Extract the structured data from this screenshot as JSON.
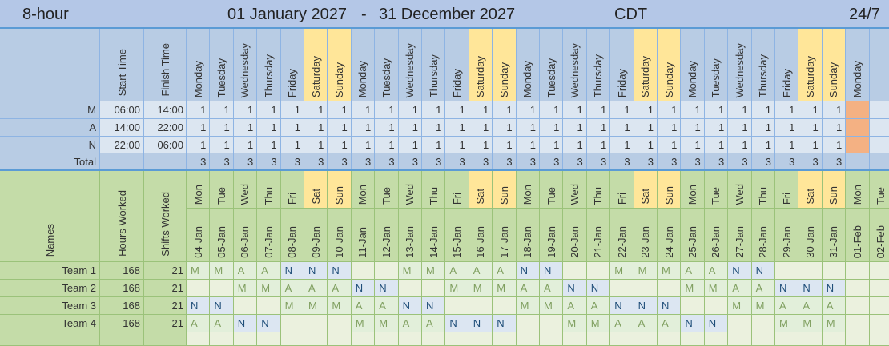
{
  "header": {
    "title": "8-hour",
    "start_date": "01 January 2027",
    "separator": "-",
    "end_date": "31 December 2027",
    "timezone": "CDT",
    "coverage": "24/7"
  },
  "shift_table": {
    "column_headers": [
      "Start Time",
      "Finish Time"
    ],
    "days": [
      {
        "label": "Monday",
        "color": "#b8cce4"
      },
      {
        "label": "Tuesday",
        "color": "#b8cce4"
      },
      {
        "label": "Wednesday",
        "color": "#b8cce4"
      },
      {
        "label": "Thursday",
        "color": "#b8cce4"
      },
      {
        "label": "Friday",
        "color": "#b8cce4"
      },
      {
        "label": "Saturday",
        "color": "#ffe699"
      },
      {
        "label": "Sunday",
        "color": "#ffe699"
      },
      {
        "label": "Monday",
        "color": "#b8cce4"
      },
      {
        "label": "Tuesday",
        "color": "#b8cce4"
      },
      {
        "label": "Wednesday",
        "color": "#b8cce4"
      },
      {
        "label": "Thursday",
        "color": "#b8cce4"
      },
      {
        "label": "Friday",
        "color": "#b8cce4"
      },
      {
        "label": "Saturday",
        "color": "#ffe699"
      },
      {
        "label": "Sunday",
        "color": "#ffe699"
      },
      {
        "label": "Monday",
        "color": "#b8cce4"
      },
      {
        "label": "Tuesday",
        "color": "#b8cce4"
      },
      {
        "label": "Wednesday",
        "color": "#b8cce4"
      },
      {
        "label": "Thursday",
        "color": "#b8cce4"
      },
      {
        "label": "Friday",
        "color": "#b8cce4"
      },
      {
        "label": "Saturday",
        "color": "#ffe699"
      },
      {
        "label": "Sunday",
        "color": "#ffe699"
      },
      {
        "label": "Monday",
        "color": "#b8cce4"
      },
      {
        "label": "Tuesday",
        "color": "#b8cce4"
      },
      {
        "label": "Wednesday",
        "color": "#b8cce4"
      },
      {
        "label": "Thursday",
        "color": "#b8cce4"
      },
      {
        "label": "Friday",
        "color": "#b8cce4"
      },
      {
        "label": "Saturday",
        "color": "#ffe699"
      },
      {
        "label": "Sunday",
        "color": "#ffe699"
      },
      {
        "label": "Monday",
        "color": "#b8cce4"
      }
    ],
    "rows": [
      {
        "label": "M",
        "start": "06:00",
        "finish": "14:00",
        "values": [
          1,
          1,
          1,
          1,
          1,
          1,
          1,
          1,
          1,
          1,
          1,
          1,
          1,
          1,
          1,
          1,
          1,
          1,
          1,
          1,
          1,
          1,
          1,
          1,
          1,
          1,
          1,
          1
        ]
      },
      {
        "label": "A",
        "start": "14:00",
        "finish": "22:00",
        "values": [
          1,
          1,
          1,
          1,
          1,
          1,
          1,
          1,
          1,
          1,
          1,
          1,
          1,
          1,
          1,
          1,
          1,
          1,
          1,
          1,
          1,
          1,
          1,
          1,
          1,
          1,
          1,
          1
        ]
      },
      {
        "label": "N",
        "start": "22:00",
        "finish": "06:00",
        "values": [
          1,
          1,
          1,
          1,
          1,
          1,
          1,
          1,
          1,
          1,
          1,
          1,
          1,
          1,
          1,
          1,
          1,
          1,
          1,
          1,
          1,
          1,
          1,
          1,
          1,
          1,
          1,
          1
        ]
      }
    ],
    "total": {
      "label": "Total",
      "values": [
        3,
        3,
        3,
        3,
        3,
        3,
        3,
        3,
        3,
        3,
        3,
        3,
        3,
        3,
        3,
        3,
        3,
        3,
        3,
        3,
        3,
        3,
        3,
        3,
        3,
        3,
        3,
        3
      ]
    }
  },
  "roster": {
    "column_headers": [
      "Names",
      "Hours Worked",
      "Shifts Worked"
    ],
    "days": [
      {
        "abbr": "Mon",
        "date": "04-Jan",
        "color": "#c4dca8"
      },
      {
        "abbr": "Tue",
        "date": "05-Jan",
        "color": "#c4dca8"
      },
      {
        "abbr": "Wed",
        "date": "06-Jan",
        "color": "#c4dca8"
      },
      {
        "abbr": "Thu",
        "date": "07-Jan",
        "color": "#c4dca8"
      },
      {
        "abbr": "Fri",
        "date": "08-Jan",
        "color": "#c4dca8"
      },
      {
        "abbr": "Sat",
        "date": "09-Jan",
        "color": "#ffe699"
      },
      {
        "abbr": "Sun",
        "date": "10-Jan",
        "color": "#ffe699"
      },
      {
        "abbr": "Mon",
        "date": "11-Jan",
        "color": "#c4dca8"
      },
      {
        "abbr": "Tue",
        "date": "12-Jan",
        "color": "#c4dca8"
      },
      {
        "abbr": "Wed",
        "date": "13-Jan",
        "color": "#c4dca8"
      },
      {
        "abbr": "Thu",
        "date": "14-Jan",
        "color": "#c4dca8"
      },
      {
        "abbr": "Fri",
        "date": "15-Jan",
        "color": "#c4dca8"
      },
      {
        "abbr": "Sat",
        "date": "16-Jan",
        "color": "#ffe699"
      },
      {
        "abbr": "Sun",
        "date": "17-Jan",
        "color": "#ffe699"
      },
      {
        "abbr": "Mon",
        "date": "18-Jan",
        "color": "#c4dca8"
      },
      {
        "abbr": "Tue",
        "date": "19-Jan",
        "color": "#c4dca8"
      },
      {
        "abbr": "Wed",
        "date": "20-Jan",
        "color": "#c4dca8"
      },
      {
        "abbr": "Thu",
        "date": "21-Jan",
        "color": "#c4dca8"
      },
      {
        "abbr": "Fri",
        "date": "22-Jan",
        "color": "#c4dca8"
      },
      {
        "abbr": "Sat",
        "date": "23-Jan",
        "color": "#ffe699"
      },
      {
        "abbr": "Sun",
        "date": "24-Jan",
        "color": "#ffe699"
      },
      {
        "abbr": "Mon",
        "date": "25-Jan",
        "color": "#c4dca8"
      },
      {
        "abbr": "Tue",
        "date": "26-Jan",
        "color": "#c4dca8"
      },
      {
        "abbr": "Wed",
        "date": "27-Jan",
        "color": "#c4dca8"
      },
      {
        "abbr": "Thu",
        "date": "28-Jan",
        "color": "#c4dca8"
      },
      {
        "abbr": "Fri",
        "date": "29-Jan",
        "color": "#c4dca8"
      },
      {
        "abbr": "Sat",
        "date": "30-Jan",
        "color": "#ffe699"
      },
      {
        "abbr": "Sun",
        "date": "31-Jan",
        "color": "#ffe699"
      },
      {
        "abbr": "Mon",
        "date": "01-Feb",
        "color": "#c4dca8"
      },
      {
        "abbr": "Tue",
        "date": "02-Feb",
        "color": "#c4dca8"
      }
    ],
    "cell_fill": {
      "M": "#e2efda",
      "A": "#e2efda",
      "N": "#dce6f2"
    },
    "teams": [
      {
        "name": "Team 1",
        "hours": 168,
        "shifts": 21,
        "schedule": [
          "M",
          "M",
          "A",
          "A",
          "N",
          "N",
          "N",
          null,
          null,
          "M",
          "M",
          "A",
          "A",
          "A",
          "N",
          "N",
          null,
          null,
          "M",
          "M",
          "M",
          "A",
          "A",
          "N",
          "N",
          null,
          null,
          null,
          null,
          null
        ]
      },
      {
        "name": "Team 2",
        "hours": 168,
        "shifts": 21,
        "schedule": [
          null,
          null,
          "M",
          "M",
          "A",
          "A",
          "A",
          "N",
          "N",
          null,
          null,
          "M",
          "M",
          "M",
          "A",
          "A",
          "N",
          "N",
          null,
          null,
          null,
          "M",
          "M",
          "A",
          "A",
          "N",
          "N",
          "N",
          null,
          null
        ]
      },
      {
        "name": "Team 3",
        "hours": 168,
        "shifts": 21,
        "schedule": [
          "N",
          "N",
          null,
          null,
          "M",
          "M",
          "M",
          "A",
          "A",
          "N",
          "N",
          null,
          null,
          null,
          "M",
          "M",
          "A",
          "A",
          "N",
          "N",
          "N",
          null,
          null,
          "M",
          "M",
          "A",
          "A",
          "A",
          null,
          null
        ]
      },
      {
        "name": "Team 4",
        "hours": 168,
        "shifts": 21,
        "schedule": [
          "A",
          "A",
          "N",
          "N",
          null,
          null,
          null,
          "M",
          "M",
          "A",
          "A",
          "N",
          "N",
          "N",
          null,
          null,
          "M",
          "M",
          "A",
          "A",
          "A",
          "N",
          "N",
          null,
          null,
          "M",
          "M",
          "M",
          null,
          null
        ]
      }
    ]
  }
}
